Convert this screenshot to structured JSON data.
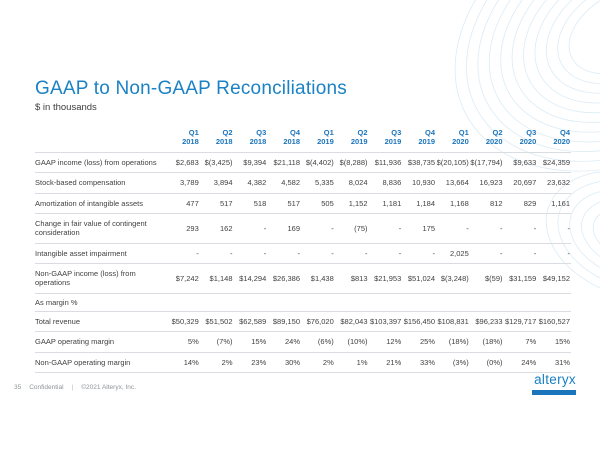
{
  "slide": {
    "title": "GAAP to Non-GAAP Reconciliations",
    "subtitle": "$ in thousands",
    "page_number": "35",
    "footer": {
      "confidential": "Confidential",
      "separator": "|",
      "copyright": "©2021 Alteryx, Inc."
    },
    "logo_text": "alteryx",
    "colors": {
      "title_blue": "#1b82c5",
      "header_blue": "#1b75bc",
      "logo_blue": "#1780c2",
      "body_text": "#3f3f3f",
      "divider": "#d9dde2"
    }
  },
  "table": {
    "quarters": [
      {
        "q": "Q1",
        "year": "2018"
      },
      {
        "q": "Q2",
        "year": "2018"
      },
      {
        "q": "Q3",
        "year": "2018"
      },
      {
        "q": "Q4",
        "year": "2018"
      },
      {
        "q": "Q1",
        "year": "2019"
      },
      {
        "q": "Q2",
        "year": "2019"
      },
      {
        "q": "Q3",
        "year": "2019"
      },
      {
        "q": "Q4",
        "year": "2019"
      },
      {
        "q": "Q1",
        "year": "2020"
      },
      {
        "q": "Q2",
        "year": "2020"
      },
      {
        "q": "Q3",
        "year": "2020"
      },
      {
        "q": "Q4",
        "year": "2020"
      }
    ],
    "rows": [
      {
        "label": "GAAP income (loss) from operations",
        "values": [
          "$2,683",
          "$(3,425)",
          "$9,394",
          "$21,118",
          "$(4,402)",
          "$(8,288)",
          "$11,936",
          "$38,735",
          "$(20,105)",
          "$(17,794)",
          "$9,633",
          "$24,359"
        ]
      },
      {
        "label": "Stock-based compensation",
        "values": [
          "3,789",
          "3,894",
          "4,382",
          "4,582",
          "5,335",
          "8,024",
          "8,836",
          "10,930",
          "13,664",
          "16,923",
          "20,697",
          "23,632"
        ]
      },
      {
        "label": "Amortization of intangible assets",
        "values": [
          "477",
          "517",
          "518",
          "517",
          "505",
          "1,152",
          "1,181",
          "1,184",
          "1,168",
          "812",
          "829",
          "1,161"
        ]
      },
      {
        "label": "Change in fair value of contingent consideration",
        "values": [
          "293",
          "162",
          "-",
          "169",
          "-",
          "(75)",
          "-",
          "175",
          "-",
          "-",
          "-",
          "-"
        ]
      },
      {
        "label": "Intangible asset impairment",
        "values": [
          "-",
          "-",
          "-",
          "-",
          "-",
          "-",
          "-",
          "-",
          "2,025",
          "-",
          "-",
          "-"
        ]
      },
      {
        "label": "Non-GAAP income (loss) from operations",
        "values": [
          "$7,242",
          "$1,148",
          "$14,294",
          "$26,386",
          "$1,438",
          "$813",
          "$21,953",
          "$51,024",
          "$(3,248)",
          "$(59)",
          "$31,159",
          "$49,152"
        ]
      }
    ],
    "section_label": "As margin %",
    "margin_rows": [
      {
        "label": "Total revenue",
        "values": [
          "$50,329",
          "$51,502",
          "$62,589",
          "$89,150",
          "$76,020",
          "$82,043",
          "$103,397",
          "$156,450",
          "$108,831",
          "$96,233",
          "$129,717",
          "$160,527"
        ]
      },
      {
        "label": "GAAP operating margin",
        "values": [
          "5%",
          "(7%)",
          "15%",
          "24%",
          "(6%)",
          "(10%)",
          "12%",
          "25%",
          "(18%)",
          "(18%)",
          "7%",
          "15%"
        ]
      },
      {
        "label": "Non-GAAP operating margin",
        "values": [
          "14%",
          "2%",
          "23%",
          "30%",
          "2%",
          "1%",
          "21%",
          "33%",
          "(3%)",
          "(0%)",
          "24%",
          "31%"
        ]
      }
    ]
  }
}
